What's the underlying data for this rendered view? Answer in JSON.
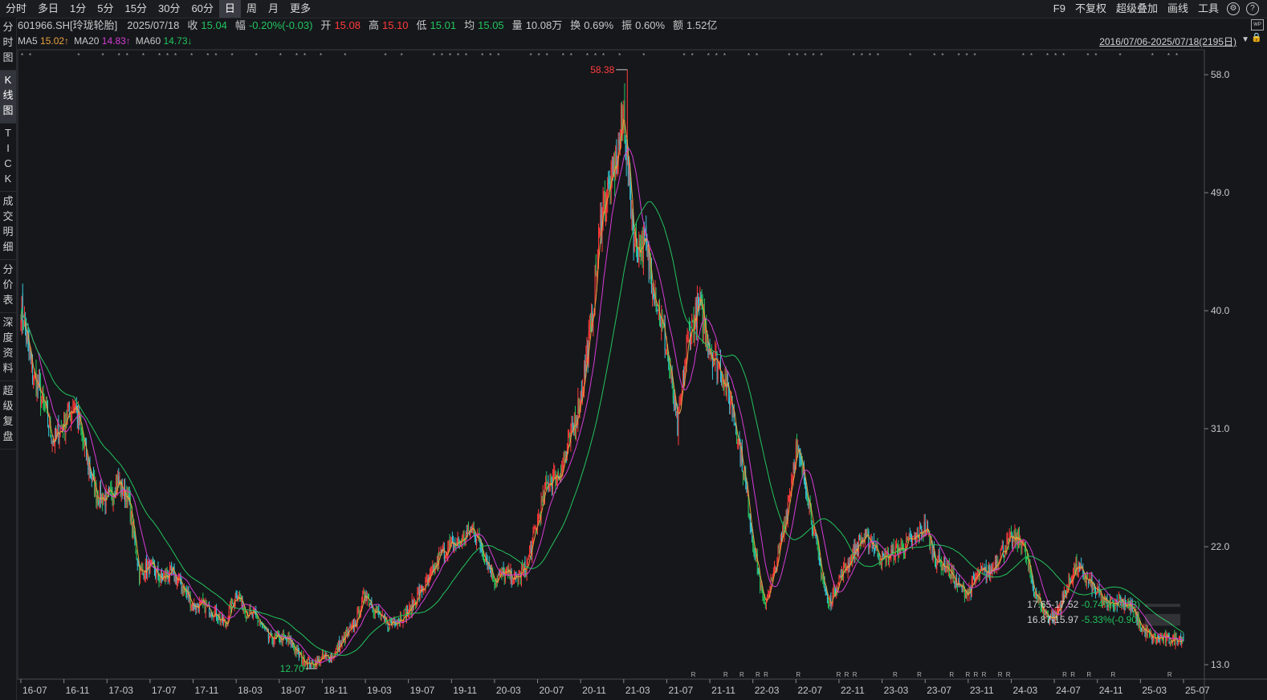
{
  "toolbar": {
    "periods": [
      "分时",
      "多日",
      "1分",
      "5分",
      "15分",
      "30分",
      "60分",
      "日",
      "周",
      "月",
      "更多"
    ],
    "active_period": "日",
    "right_buttons": [
      "F9",
      "不复权",
      "超级叠加",
      "画线",
      "工具"
    ],
    "settings_icon": "gear-icon",
    "help_icon": "question-icon"
  },
  "info": {
    "code": "601966.SH[玲珑轮胎]",
    "date": "2025/07/18",
    "close_label": "收",
    "close": "15.04",
    "change_label": "幅",
    "change": "-0.20%(-0.03)",
    "open_label": "开",
    "open": "15.08",
    "high_label": "高",
    "high": "15.10",
    "low_label": "低",
    "low": "15.01",
    "avg_label": "均",
    "avg": "15.05",
    "volume_label": "量",
    "volume": "10.08万",
    "turnover_label": "换",
    "turnover": "0.69%",
    "amplitude_label": "振",
    "amplitude": "0.60%",
    "amount_label": "额",
    "amount": "1.52亿"
  },
  "ma": {
    "ma5_label": "MA5",
    "ma5": "15.02↑",
    "ma20_label": "MA20",
    "ma20": "14.83↑",
    "ma60_label": "MA60",
    "ma60": "14.73↓"
  },
  "range_label": "2016/07/06-2025/07/18(2195日)",
  "side_tabs": [
    "分\n时\n图",
    "K\n线\n图",
    "T\nI\nC\nK",
    "成\n交\n明\n细",
    "分\n价\n表",
    "深\n度\n资\n料",
    "超\n级\n复\n盘"
  ],
  "active_side_tab": "K\n线\n图",
  "colors": {
    "up": "#ff3b3b",
    "down": "#22c55e",
    "ma5": "#e8a33d",
    "ma20": "#d63cd6",
    "ma60": "#22c55e",
    "background": "#16171b"
  },
  "chart_data": {
    "type": "candlestick",
    "x_ticks": [
      "16-07",
      "16-11",
      "17-03",
      "17-07",
      "17-11",
      "18-03",
      "18-07",
      "18-11",
      "19-03",
      "19-07",
      "19-11",
      "20-03",
      "20-07",
      "20-11",
      "21-03",
      "21-07",
      "21-11",
      "22-03",
      "22-07",
      "22-11",
      "23-03",
      "23-07",
      "23-11",
      "24-03",
      "24-07",
      "24-11",
      "25-03",
      "25-07"
    ],
    "y_ticks": [
      13.0,
      22.0,
      31.0,
      40.0,
      49.0,
      58.0
    ],
    "ylim": [
      11.9,
      59.9
    ],
    "max_label": "58.38",
    "min_label": "12.70",
    "price_path": [
      [
        "16-07",
        40.5
      ],
      [
        "16-08",
        35.5
      ],
      [
        "16-09",
        33.0
      ],
      [
        "16-10",
        30.0
      ],
      [
        "16-11",
        31.5
      ],
      [
        "16-12",
        33.0
      ],
      [
        "17-01",
        29.0
      ],
      [
        "17-02",
        26.0
      ],
      [
        "17-03",
        25.5
      ],
      [
        "17-04",
        27.0
      ],
      [
        "17-05",
        25.5
      ],
      [
        "17-06",
        20.0
      ],
      [
        "17-07",
        20.5
      ],
      [
        "17-08",
        19.5
      ],
      [
        "17-09",
        20.0
      ],
      [
        "17-10",
        19.0
      ],
      [
        "17-11",
        17.5
      ],
      [
        "17-12",
        17.5
      ],
      [
        "18-01",
        17.0
      ],
      [
        "18-02",
        16.0
      ],
      [
        "18-03",
        18.5
      ],
      [
        "18-04",
        17.0
      ],
      [
        "18-05",
        16.5
      ],
      [
        "18-06",
        15.0
      ],
      [
        "18-07",
        15.0
      ],
      [
        "18-08",
        14.8
      ],
      [
        "18-09",
        13.5
      ],
      [
        "18-10",
        13.0
      ],
      [
        "18-11",
        13.5
      ],
      [
        "18-12",
        13.7
      ],
      [
        "19-01",
        15.0
      ],
      [
        "19-02",
        16.0
      ],
      [
        "19-03",
        18.5
      ],
      [
        "19-04",
        17.0
      ],
      [
        "19-05",
        16.0
      ],
      [
        "19-06",
        16.5
      ],
      [
        "19-07",
        17.0
      ],
      [
        "19-08",
        18.5
      ],
      [
        "19-09",
        19.5
      ],
      [
        "19-10",
        21.5
      ],
      [
        "19-11",
        22.0
      ],
      [
        "19-12",
        22.5
      ],
      [
        "20-01",
        23.5
      ],
      [
        "20-02",
        21.5
      ],
      [
        "20-03",
        19.5
      ],
      [
        "20-04",
        20.0
      ],
      [
        "20-05",
        19.5
      ],
      [
        "20-06",
        20.5
      ],
      [
        "20-07",
        24.0
      ],
      [
        "20-08",
        27.0
      ],
      [
        "20-09",
        27.5
      ],
      [
        "20-10",
        30.0
      ],
      [
        "20-11",
        33.5
      ],
      [
        "20-12",
        39.0
      ],
      [
        "21-01",
        48.0
      ],
      [
        "21-02",
        50.0
      ],
      [
        "21-03",
        55.0
      ],
      [
        "21-04",
        45.0
      ],
      [
        "21-05",
        45.0
      ],
      [
        "21-06",
        41.0
      ],
      [
        "21-07",
        37.0
      ],
      [
        "21-08",
        31.0
      ],
      [
        "21-09",
        38.0
      ],
      [
        "21-10",
        40.5
      ],
      [
        "21-11",
        37.0
      ],
      [
        "21-12",
        35.5
      ],
      [
        "22-01",
        33.0
      ],
      [
        "22-02",
        28.5
      ],
      [
        "22-03",
        22.5
      ],
      [
        "22-04",
        17.5
      ],
      [
        "22-05",
        20.0
      ],
      [
        "22-06",
        24.0
      ],
      [
        "22-07",
        29.5
      ],
      [
        "22-08",
        26.5
      ],
      [
        "22-09",
        21.5
      ],
      [
        "22-10",
        17.5
      ],
      [
        "22-11",
        19.5
      ],
      [
        "22-12",
        21.0
      ],
      [
        "23-01",
        22.5
      ],
      [
        "23-02",
        22.5
      ],
      [
        "23-03",
        21.0
      ],
      [
        "23-04",
        21.5
      ],
      [
        "23-05",
        22.0
      ],
      [
        "23-06",
        22.5
      ],
      [
        "23-07",
        23.5
      ],
      [
        "23-08",
        21.0
      ],
      [
        "23-09",
        20.5
      ],
      [
        "23-10",
        19.0
      ],
      [
        "23-11",
        18.5
      ],
      [
        "23-12",
        20.0
      ],
      [
        "24-01",
        20.0
      ],
      [
        "24-02",
        21.5
      ],
      [
        "24-03",
        22.5
      ],
      [
        "24-04",
        22.5
      ],
      [
        "24-05",
        19.0
      ],
      [
        "24-06",
        17.0
      ],
      [
        "24-07",
        16.5
      ],
      [
        "24-08",
        18.5
      ],
      [
        "24-09",
        20.5
      ],
      [
        "24-10",
        19.5
      ],
      [
        "24-11",
        18.5
      ],
      [
        "24-12",
        17.5
      ],
      [
        "25-01",
        18.0
      ],
      [
        "25-02",
        17.5
      ],
      [
        "25-03",
        16.0
      ],
      [
        "25-04",
        15.0
      ],
      [
        "25-05",
        15.0
      ],
      [
        "25-06",
        14.9
      ],
      [
        "25-07",
        15.04
      ]
    ],
    "annotations": [
      {
        "text": "17.65-17.52",
        "change": "-0.74%(-0.13)",
        "low": 17.52,
        "high": 17.65
      },
      {
        "text": "16.87-15.97",
        "change": "-5.33%(-0.90)",
        "low": 15.97,
        "high": 16.87
      }
    ],
    "grid": false
  }
}
